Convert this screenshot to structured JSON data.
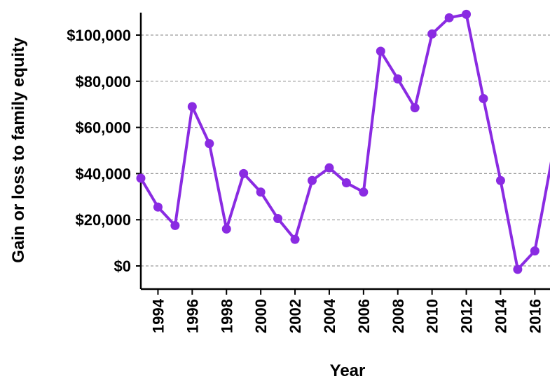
{
  "chart_data": {
    "type": "line",
    "title": "",
    "xlabel": "Year",
    "ylabel": "Gain or loss to family equity",
    "x": [
      1993,
      1994,
      1995,
      1996,
      1997,
      1998,
      1999,
      2000,
      2001,
      2002,
      2003,
      2004,
      2005,
      2006,
      2007,
      2008,
      2009,
      2010,
      2011,
      2012,
      2013,
      2014,
      2015,
      2016,
      2017
    ],
    "series": [
      {
        "color": "#8a2be2",
        "values": [
          38000,
          25500,
          17500,
          69000,
          53000,
          16000,
          40000,
          32000,
          20500,
          11500,
          37000,
          42500,
          36000,
          32000,
          93000,
          81000,
          68500,
          100500,
          107500,
          109000,
          72500,
          37000,
          -1500,
          6500,
          46500
        ]
      }
    ],
    "xticks": [
      "1994",
      "1996",
      "1998",
      "2000",
      "2002",
      "2004",
      "2006",
      "2008",
      "2010",
      "2012",
      "2014",
      "2016"
    ],
    "xtick_values": [
      1994,
      1996,
      1998,
      2000,
      2002,
      2004,
      2006,
      2008,
      2010,
      2012,
      2014,
      2016
    ],
    "yticks": [
      "$0",
      "$20,000",
      "$40,000",
      "$60,000",
      "$80,000",
      "$100,000"
    ],
    "ytick_values": [
      0,
      20000,
      40000,
      60000,
      80000,
      100000
    ],
    "xlim": [
      1993,
      2017
    ],
    "ylim": [
      -10000,
      110000
    ],
    "grid": "horizontal dashed",
    "legend": "none"
  }
}
